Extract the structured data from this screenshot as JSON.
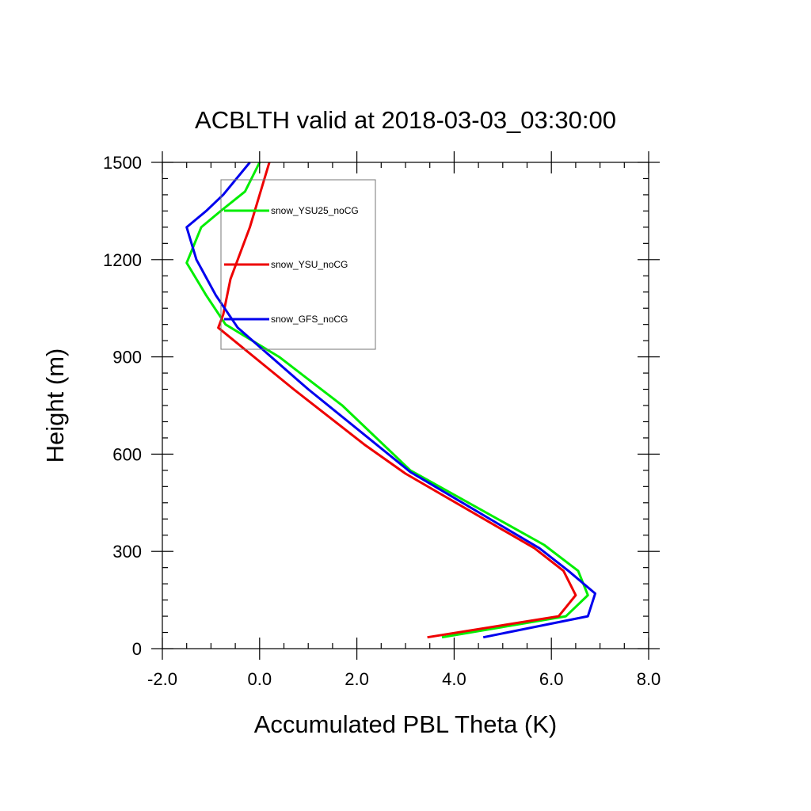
{
  "chart_data": {
    "type": "line",
    "title": "ACBLTH valid at 2018-03-03_03:30:00",
    "xlabel": "Accumulated PBL Theta (K)",
    "ylabel": "Height (m)",
    "xlim": [
      -2.0,
      8.0
    ],
    "ylim": [
      0,
      1500
    ],
    "x_ticks": [
      "-2.0",
      "0.0",
      "2.0",
      "4.0",
      "6.0",
      "8.0"
    ],
    "y_ticks": [
      "0",
      "300",
      "600",
      "900",
      "1200",
      "1500"
    ],
    "grid": false,
    "legend_position": "top-left",
    "series": [
      {
        "name": "snow_YSU25_noCG",
        "color": "#00ee00",
        "points": [
          [
            3.75,
            35
          ],
          [
            6.3,
            100
          ],
          [
            6.75,
            165
          ],
          [
            6.55,
            240
          ],
          [
            5.85,
            320
          ],
          [
            3.1,
            550
          ],
          [
            1.7,
            750
          ],
          [
            0.4,
            900
          ],
          [
            -0.7,
            1000
          ],
          [
            -1.1,
            1090
          ],
          [
            -1.5,
            1190
          ],
          [
            -1.2,
            1300
          ],
          [
            -0.8,
            1350
          ],
          [
            -0.3,
            1410
          ],
          [
            0.0,
            1500
          ]
        ]
      },
      {
        "name": "snow_YSU_noCG",
        "color": "#ee0000",
        "points": [
          [
            3.45,
            35
          ],
          [
            6.15,
            100
          ],
          [
            6.5,
            165
          ],
          [
            6.25,
            240
          ],
          [
            5.65,
            310
          ],
          [
            3.0,
            540
          ],
          [
            2.15,
            630
          ],
          [
            0.7,
            800
          ],
          [
            -0.85,
            990
          ],
          [
            -0.75,
            1030
          ],
          [
            -0.6,
            1140
          ],
          [
            -0.2,
            1300
          ],
          [
            0.2,
            1500
          ]
        ]
      },
      {
        "name": "snow_GFS_noCG",
        "color": "#0000ee",
        "points": [
          [
            4.6,
            35
          ],
          [
            6.75,
            100
          ],
          [
            6.9,
            170
          ],
          [
            6.35,
            240
          ],
          [
            5.75,
            310
          ],
          [
            3.1,
            545
          ],
          [
            1.0,
            800
          ],
          [
            -0.45,
            990
          ],
          [
            -0.9,
            1090
          ],
          [
            -1.3,
            1200
          ],
          [
            -1.5,
            1300
          ],
          [
            -1.1,
            1350
          ],
          [
            -0.75,
            1400
          ],
          [
            -0.2,
            1500
          ]
        ]
      }
    ]
  }
}
